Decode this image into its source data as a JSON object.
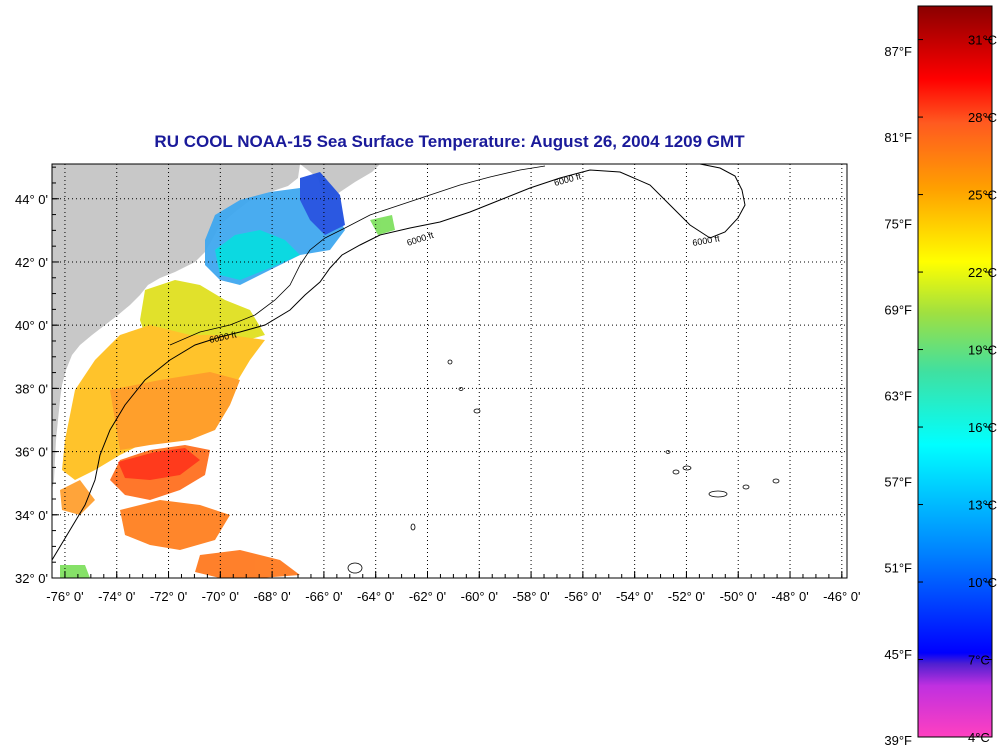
{
  "chart_data": {
    "type": "heatmap",
    "title": "RU COOL  NOAA-15  Sea Surface Temperature:  August 26, 2004 1209 GMT",
    "x_ticks": [
      "-76° 0'",
      "-74° 0'",
      "-72° 0'",
      "-70° 0'",
      "-68° 0'",
      "-66° 0'",
      "-64° 0'",
      "-62° 0'",
      "-60° 0'",
      "-58° 0'",
      "-56° 0'",
      "-54° 0'",
      "-52° 0'",
      "-50° 0'",
      "-48° 0'",
      "-46° 0'"
    ],
    "x_tick_values": [
      -76,
      -74,
      -72,
      -70,
      -68,
      -66,
      -64,
      -62,
      -60,
      -58,
      -56,
      -54,
      -52,
      -50,
      -48,
      -46
    ],
    "y_ticks": [
      "44° 0'",
      "42° 0'",
      "40° 0'",
      "38° 0'",
      "36° 0'",
      "34° 0'",
      "32° 0'"
    ],
    "y_tick_values": [
      44,
      42,
      40,
      38,
      36,
      34,
      32
    ],
    "xlim": [
      -76.5,
      -45.8
    ],
    "ylim": [
      32,
      45.1
    ],
    "grid": true,
    "contour_label": "6000 ft",
    "colorbar": {
      "celsius_labels": [
        "31°C",
        "28°C",
        "25°C",
        "22°C",
        "19°C",
        "16°C",
        "13°C",
        "10°C",
        "7°C",
        "4°C"
      ],
      "celsius_values": [
        31,
        28,
        25,
        22,
        19,
        16,
        13,
        10,
        7,
        4
      ],
      "fahrenheit_labels": [
        "87°F",
        "81°F",
        "75°F",
        "69°F",
        "63°F",
        "57°F",
        "51°F",
        "45°F",
        "39°F"
      ],
      "fahrenheit_values": [
        87,
        81,
        75,
        69,
        63,
        57,
        51,
        45,
        39
      ],
      "range_c": [
        4,
        32.3
      ],
      "stops": [
        "#ff40c0",
        "#a030e0",
        "#2020d0",
        "#0000ff",
        "#0080ff",
        "#00ffff",
        "#40e0a0",
        "#80e040",
        "#ffff00",
        "#ffa000",
        "#ff6020",
        "#ff0000",
        "#a00000"
      ]
    },
    "colors": {
      "land": "#c8c8c8",
      "frame": "#000000",
      "title": "#1a1a9a"
    }
  }
}
